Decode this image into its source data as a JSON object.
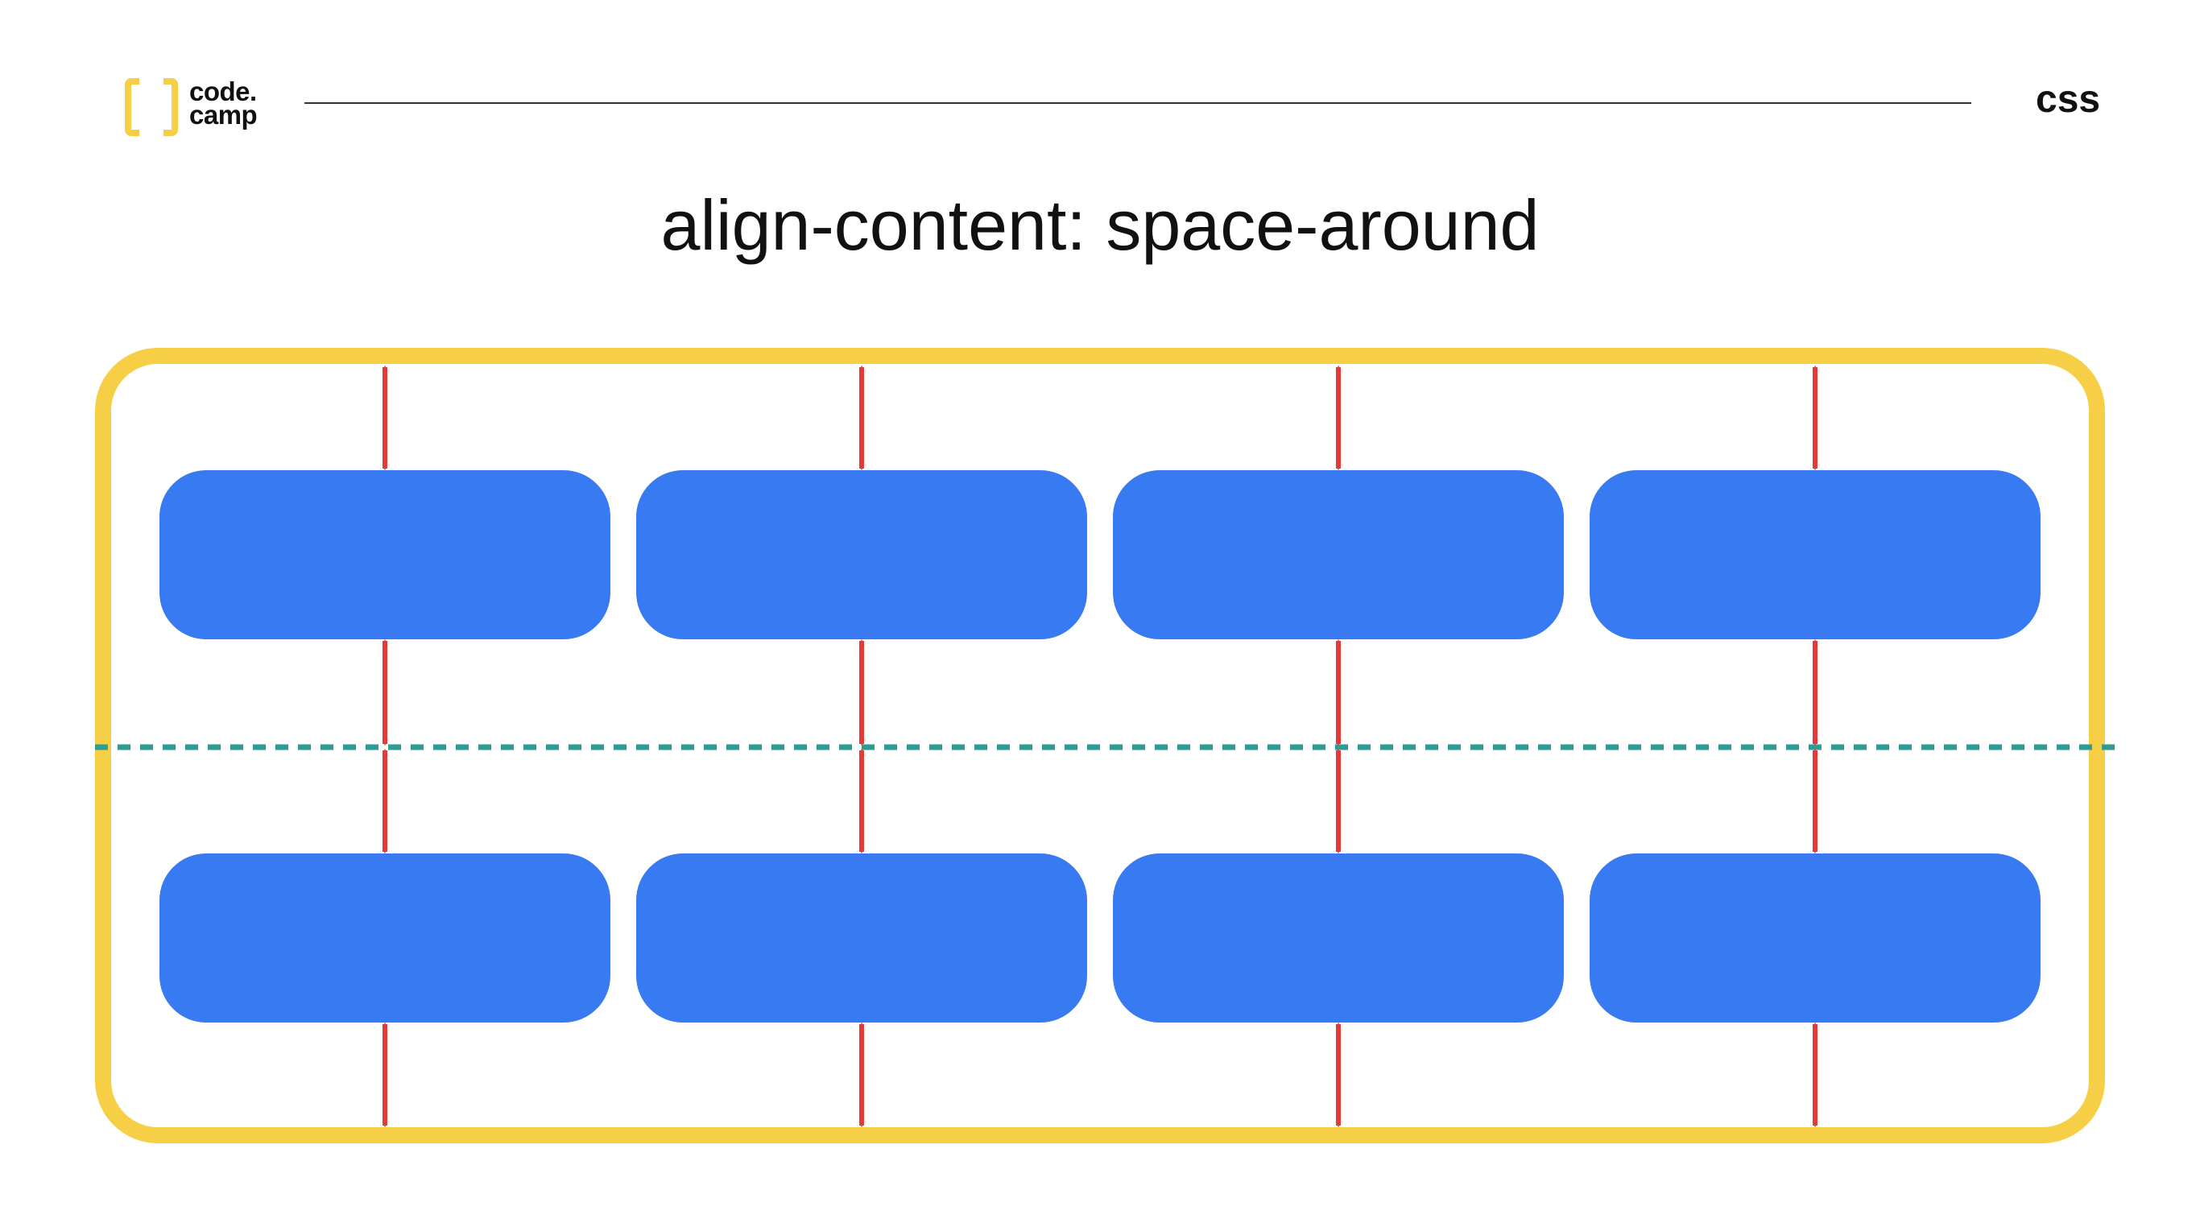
{
  "header": {
    "logo": {
      "line1": "code.",
      "line2": "camp",
      "icon": "bracket-logo-icon"
    },
    "topic": "css"
  },
  "title": "align-content: space-around",
  "diagram": {
    "container_color": "#F7CF46",
    "item_color": "#377AF2",
    "arrow_color": "#E43A3A",
    "midline_color": "#2E9C94",
    "rows": 2,
    "columns": 4
  }
}
